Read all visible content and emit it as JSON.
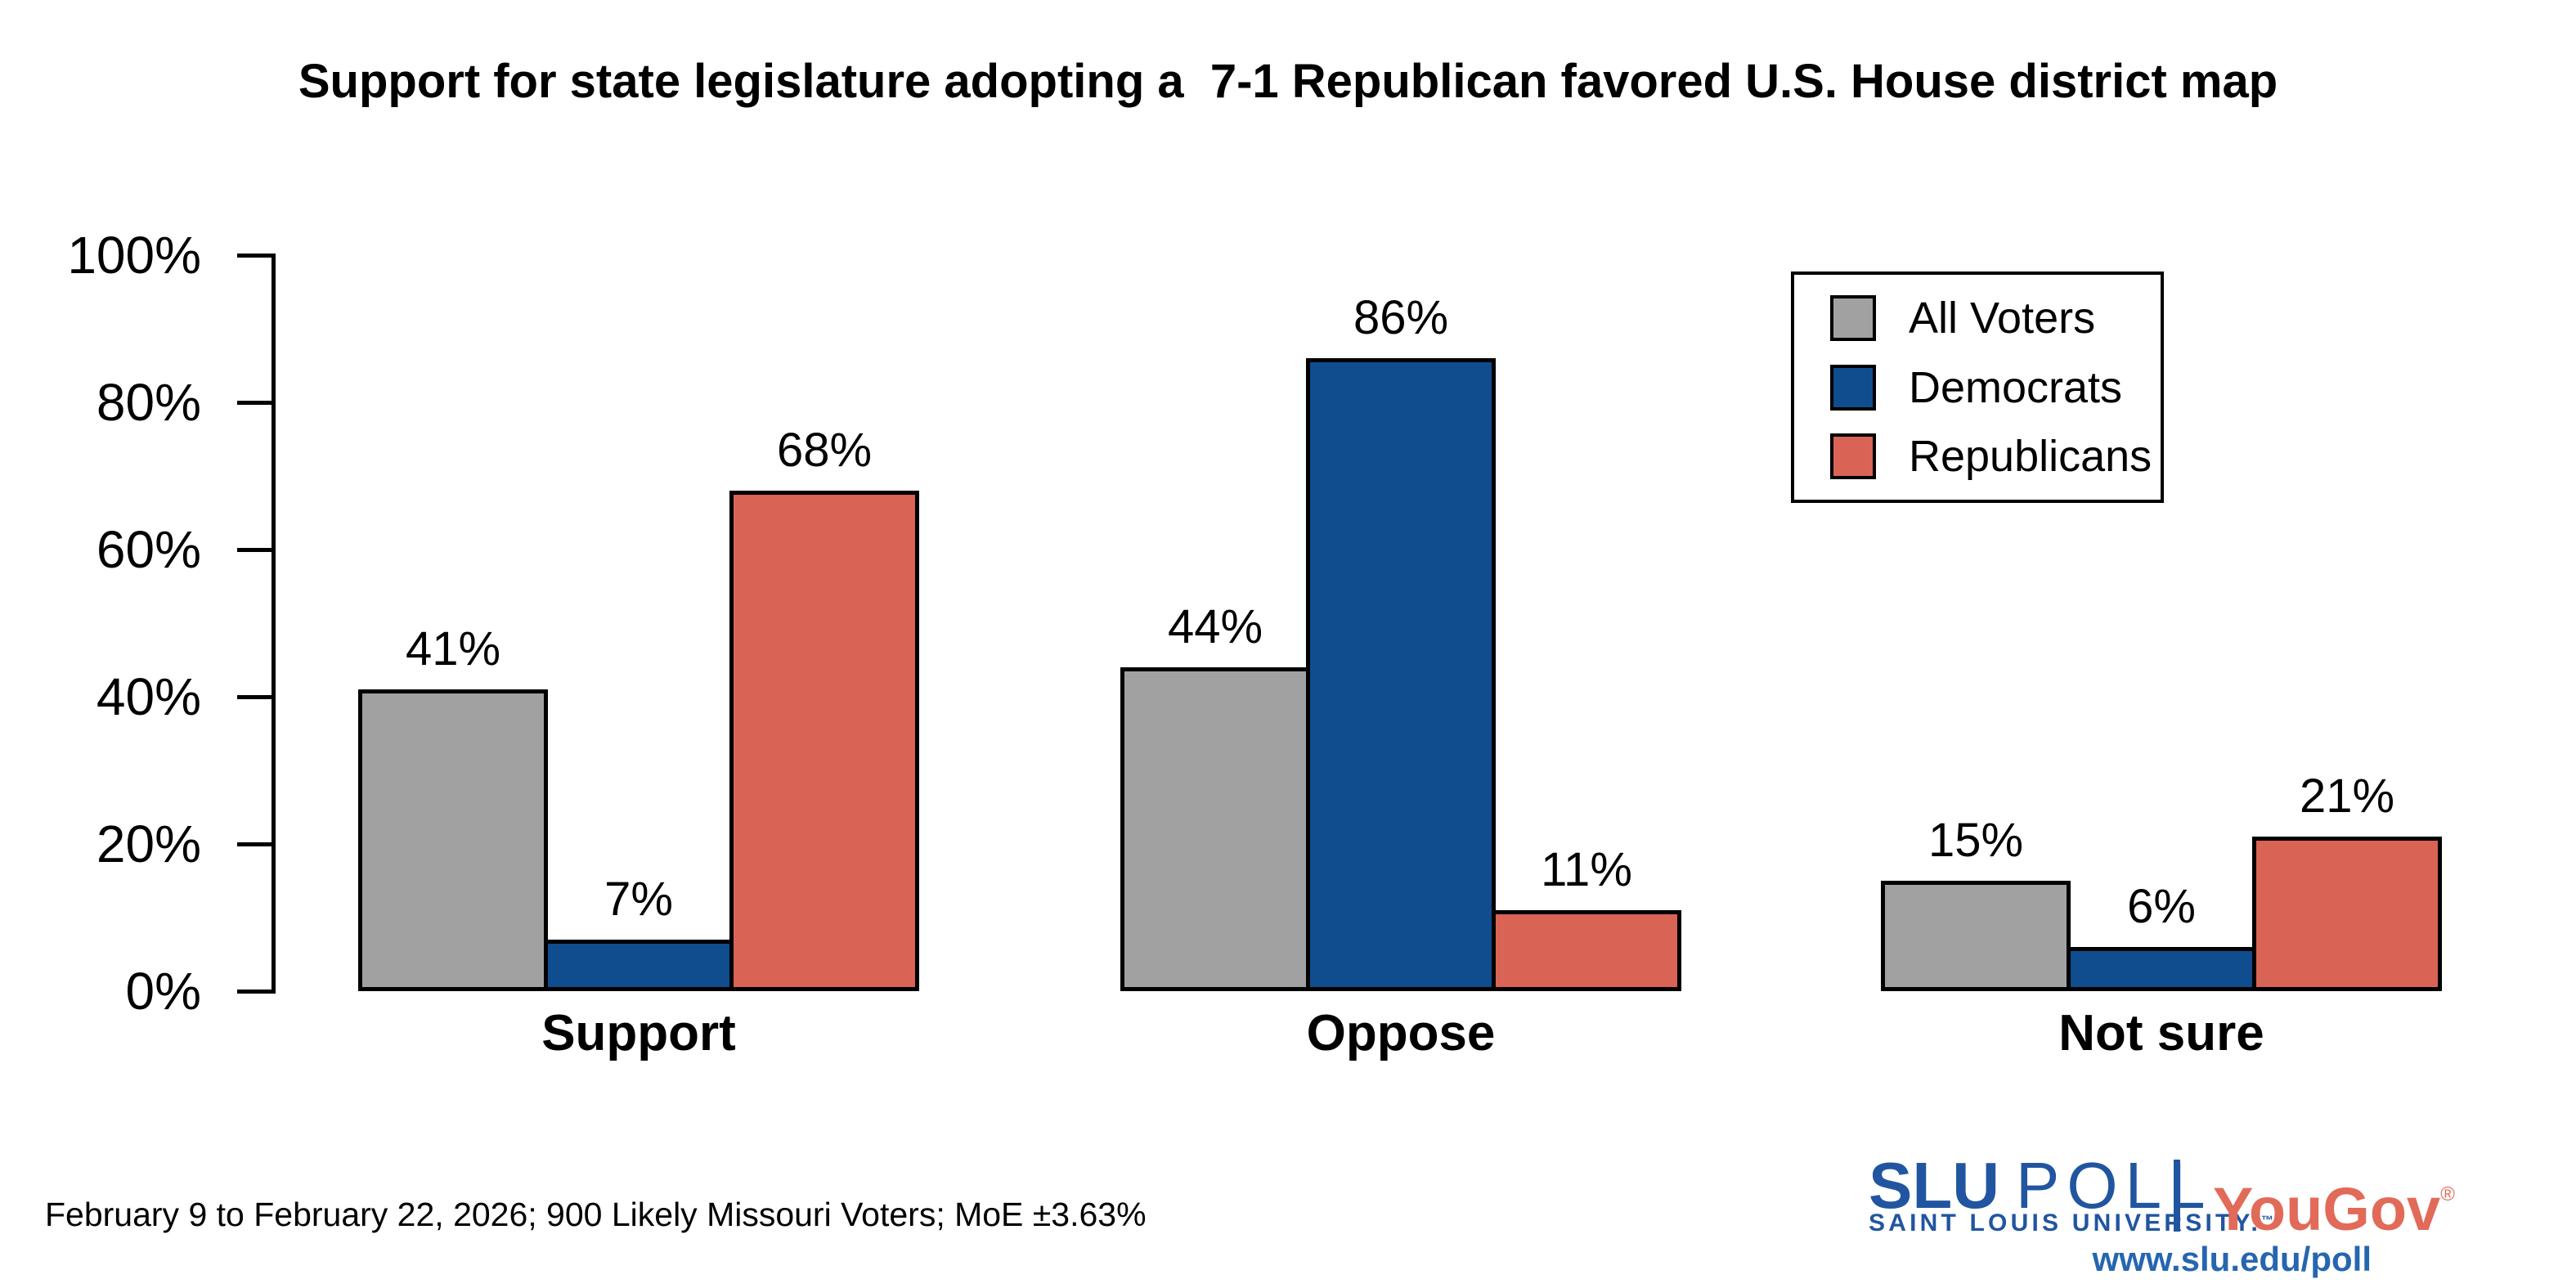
{
  "title": "Support for state legislature adopting a  7-1 Republican favored U.S. House district map",
  "chart_data": {
    "type": "bar",
    "categories": [
      "Support",
      "Oppose",
      "Not sure"
    ],
    "series": [
      {
        "name": "All Voters",
        "color": "#A1A1A1",
        "values": [
          41,
          7,
          68
        ]
      },
      {
        "name": "Democrats",
        "color": "#0F4D8E",
        "values": [
          44,
          86,
          11
        ]
      },
      {
        "name": "Republicans",
        "color": "#D96355",
        "values": [
          15,
          6,
          21
        ]
      }
    ],
    "series_note": "series[i].values are the three bars (All Voters, Democrats, Republicans) per category, stored per-category below",
    "values_by_category": {
      "Support": {
        "All Voters": 41,
        "Democrats": 7,
        "Republicans": 68
      },
      "Oppose": {
        "All Voters": 44,
        "Democrats": 86,
        "Republicans": 11
      },
      "Not sure": {
        "All Voters": 15,
        "Democrats": 6,
        "Republicans": 21
      }
    },
    "value_suffix": "%",
    "ylim": [
      0,
      100
    ],
    "yticks": [
      0,
      20,
      40,
      60,
      80,
      100
    ],
    "ytick_suffix": "%",
    "grid": "off",
    "legend_position": "top-right",
    "bar_border_color": "#000000"
  },
  "legend": {
    "entries": [
      "All Voters",
      "Democrats",
      "Republicans"
    ]
  },
  "footer": {
    "note": "February 9 to February 22, 2026; 900 Likely Missouri Voters; MoE ±3.63%"
  },
  "branding": {
    "slu": "SLU",
    "poll": "POLL",
    "subtitle": "SAINT LOUIS UNIVERSITY.",
    "trademark": "™",
    "separator": "",
    "yougov": "YouGov",
    "registered": "®",
    "url": "www.slu.edu/poll",
    "colors": {
      "slu_blue": "#2155A0",
      "yougov_coral": "#E26A58",
      "url_blue": "#2666B0"
    }
  }
}
